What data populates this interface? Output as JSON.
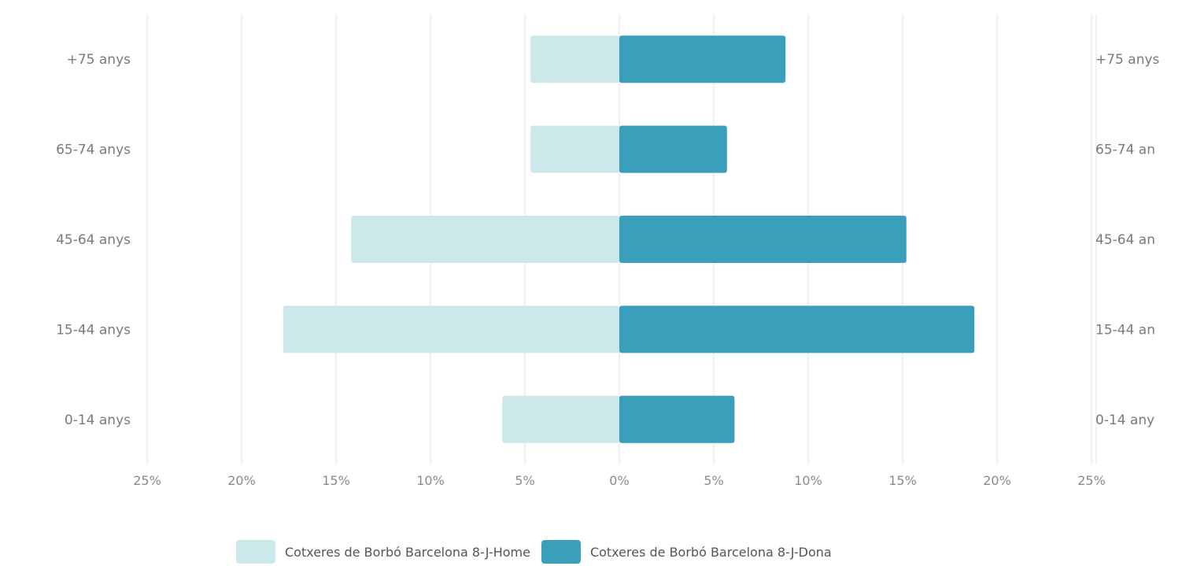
{
  "chart_data": {
    "type": "bar",
    "orientation": "horizontal",
    "layout": "population-pyramid",
    "categories": [
      "+75 anys",
      "65-74 anys",
      "45-64 anys",
      "15-44 anys",
      "0-14 anys"
    ],
    "series": [
      {
        "name": "Cotxeres de Borbó Barcelona 8-J-Home",
        "side": "left",
        "color": "#cde8ea",
        "values": [
          4.7,
          4.7,
          14.2,
          17.8,
          6.2
        ]
      },
      {
        "name": "Cotxeres de Borbó Barcelona 8-J-Dona",
        "side": "right",
        "color": "#3a9fba",
        "values": [
          8.8,
          5.7,
          15.2,
          18.8,
          6.1
        ]
      }
    ],
    "x_ticks": [
      "25%",
      "20%",
      "15%",
      "10%",
      "5%",
      "0%",
      "5%",
      "10%",
      "15%",
      "20%",
      "25%"
    ],
    "xlim": [
      -25,
      25
    ],
    "right_axis_labels": [
      "+75 anys",
      "65-74 an",
      "45-64 an",
      "15-44 an",
      "0-14 any"
    ],
    "grid": true,
    "legend_position": "bottom"
  }
}
